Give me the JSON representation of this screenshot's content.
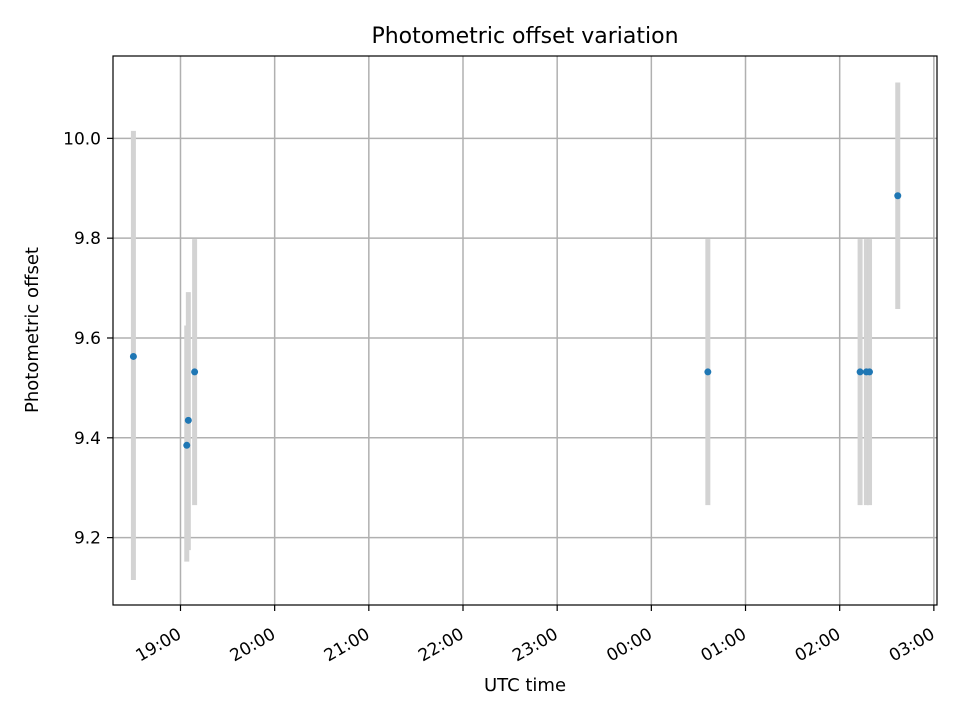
{
  "chart_data": {
    "type": "scatter",
    "title": "Photometric offset variation",
    "xlabel": "UTC time",
    "ylabel": "Photometric offset",
    "x_axis": {
      "type": "time",
      "min": "18:17",
      "max": "03:02",
      "ticks": [
        "19:00",
        "20:00",
        "21:00",
        "22:00",
        "23:00",
        "00:00",
        "01:00",
        "02:00",
        "03:00"
      ]
    },
    "y_axis": {
      "min": 9.065,
      "max": 10.165,
      "ticks": [
        9.2,
        9.4,
        9.6,
        9.8,
        10.0
      ]
    },
    "grid": true,
    "colors": {
      "point": "#1f77b4",
      "errorbar": "#d3d3d3",
      "grid": "#b0b0b0"
    },
    "points": [
      {
        "time": "18:30",
        "y": 9.563,
        "yerr_low": 9.115,
        "yerr_high": 10.015
      },
      {
        "time": "19:04",
        "y": 9.385,
        "yerr_low": 9.152,
        "yerr_high": 9.625
      },
      {
        "time": "19:05",
        "y": 9.435,
        "yerr_low": 9.175,
        "yerr_high": 9.692
      },
      {
        "time": "19:09",
        "y": 9.532,
        "yerr_low": 9.265,
        "yerr_high": 9.798
      },
      {
        "time": "00:36",
        "y": 9.532,
        "yerr_low": 9.265,
        "yerr_high": 9.798
      },
      {
        "time": "02:13",
        "y": 9.532,
        "yerr_low": 9.265,
        "yerr_high": 9.798
      },
      {
        "time": "02:17",
        "y": 9.532,
        "yerr_low": 9.265,
        "yerr_high": 9.798
      },
      {
        "time": "02:19",
        "y": 9.532,
        "yerr_low": 9.265,
        "yerr_high": 9.798
      },
      {
        "time": "02:37",
        "y": 9.885,
        "yerr_low": 9.658,
        "yerr_high": 10.112
      }
    ]
  }
}
